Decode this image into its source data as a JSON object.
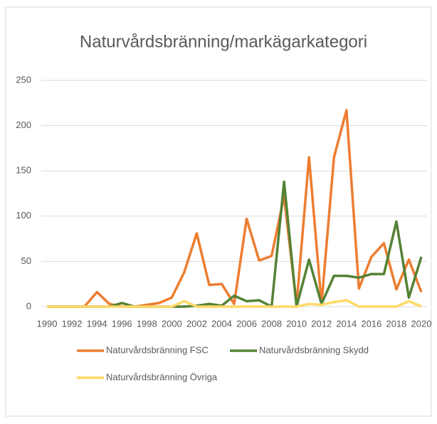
{
  "chart_data": {
    "type": "line",
    "title": "Naturvårdsbränning/markägarkategori",
    "x": [
      1990,
      1991,
      1992,
      1993,
      1994,
      1995,
      1996,
      1997,
      1998,
      1999,
      2000,
      2001,
      2002,
      2003,
      2004,
      2005,
      2006,
      2007,
      2008,
      2009,
      2010,
      2011,
      2012,
      2013,
      2014,
      2015,
      2016,
      2017,
      2018,
      2019,
      2020
    ],
    "xlim": [
      1990,
      2020
    ],
    "xticks": [
      1990,
      1992,
      1994,
      1996,
      1998,
      2000,
      2002,
      2004,
      2006,
      2008,
      2010,
      2012,
      2014,
      2016,
      2018,
      2020
    ],
    "ylim": [
      0,
      250
    ],
    "yticks": [
      0,
      50,
      100,
      150,
      200,
      250
    ],
    "grid": true,
    "legend": "bottom",
    "series": [
      {
        "name": "Naturvårdsbränning FSC",
        "color": "#ed7d31",
        "values": [
          0,
          0,
          0,
          0,
          16,
          3,
          0,
          0,
          2,
          4,
          10,
          38,
          81,
          24,
          25,
          3,
          97,
          51,
          56,
          122,
          2,
          165,
          3,
          165,
          217,
          20,
          55,
          70,
          19,
          52,
          16
        ]
      },
      {
        "name": "Naturvårdsbränning Skydd",
        "color": "#548235",
        "values": [
          0,
          0,
          0,
          0,
          0,
          0,
          4,
          0,
          0,
          0,
          0,
          0,
          1,
          3,
          1,
          12,
          6,
          7,
          0,
          138,
          0,
          52,
          3,
          34,
          34,
          32,
          36,
          36,
          94,
          10,
          55
        ]
      },
      {
        "name": "Naturvårdsbränning Övriga",
        "color": "#ffd966",
        "values": [
          0,
          0,
          0,
          0,
          0,
          0,
          0,
          0,
          0,
          0,
          0,
          6,
          0,
          0,
          0,
          0,
          0,
          0,
          0,
          0,
          0,
          3,
          2,
          5,
          7,
          0,
          0,
          0,
          0,
          6,
          0
        ]
      }
    ]
  }
}
